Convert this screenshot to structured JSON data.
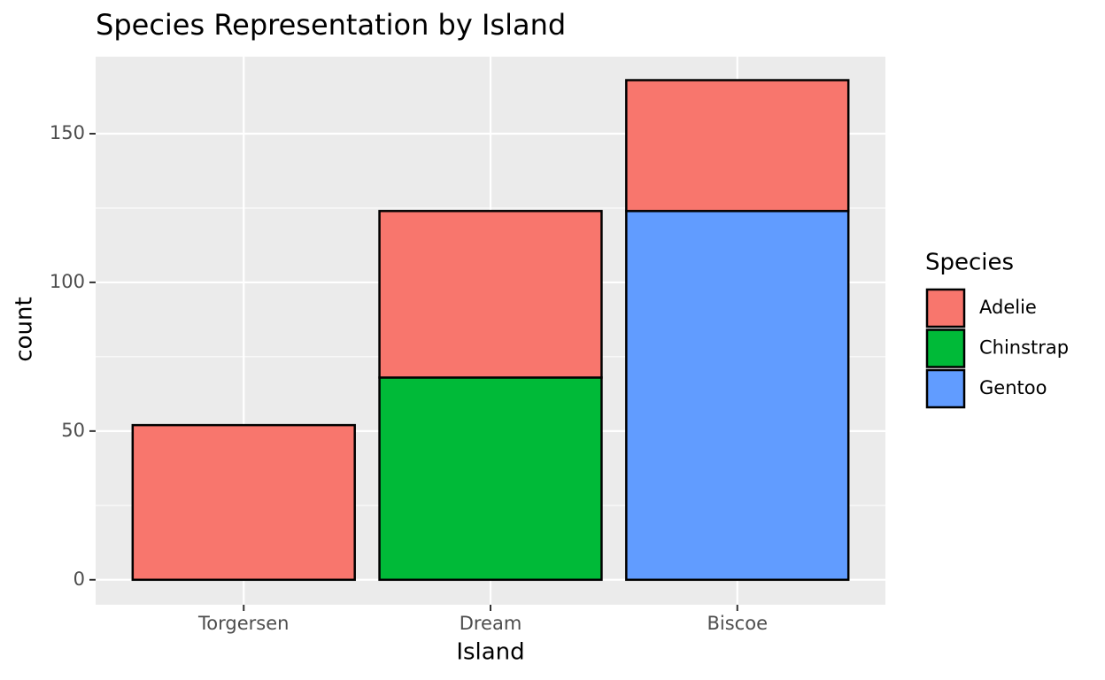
{
  "chart_data": {
    "type": "stacked_bar",
    "title": "Species Representation by Island",
    "x_label": "Island",
    "y_label": "count",
    "legend_title": "Species",
    "categories": [
      "Torgersen",
      "Dream",
      "Biscoe"
    ],
    "series": [
      {
        "name": "Adelie",
        "color": "#f8766d",
        "values": [
          52,
          56,
          44
        ]
      },
      {
        "name": "Chinstrap",
        "color": "#00ba38",
        "values": [
          null,
          68,
          null
        ]
      },
      {
        "name": "Gentoo",
        "color": "#619cff",
        "values": [
          null,
          null,
          124
        ]
      }
    ],
    "ylim": [
      -8.4,
      175.9
    ],
    "yticks": [
      0,
      50,
      100,
      150
    ],
    "grid": true
  }
}
